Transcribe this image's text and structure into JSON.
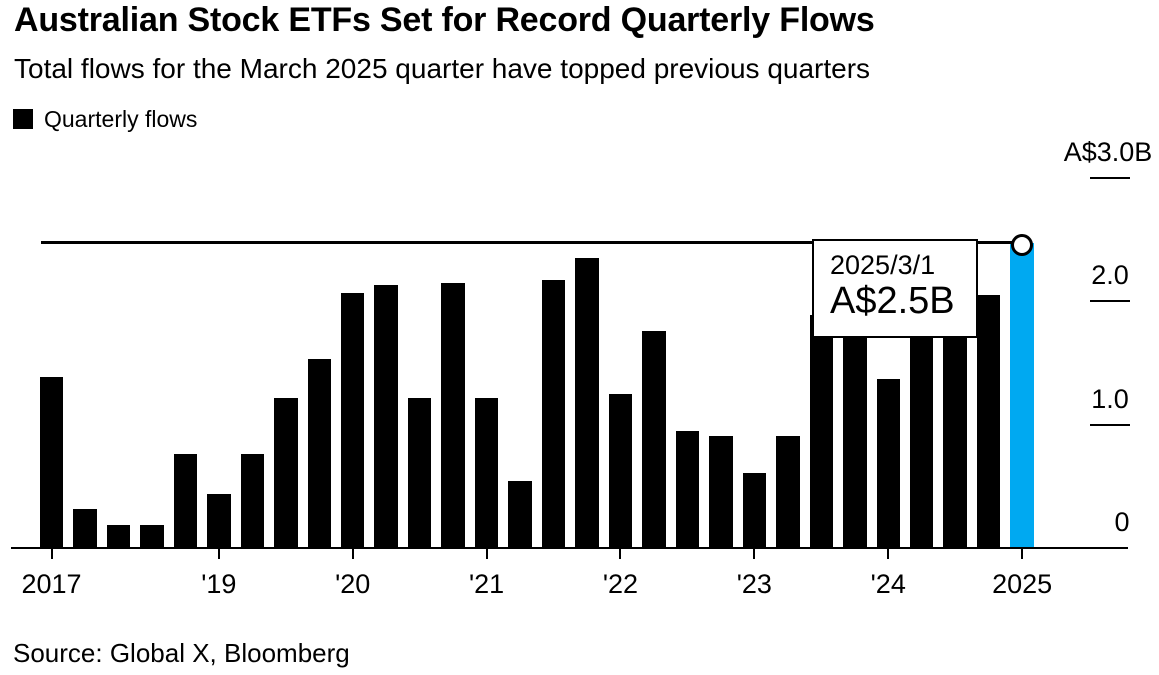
{
  "header": {
    "title": "Australian Stock ETFs Set for Record Quarterly Flows",
    "subtitle": "Total flows for the March 2025 quarter have topped previous quarters"
  },
  "legend": {
    "label": "Quarterly flows",
    "swatch_color": "#000000"
  },
  "tooltip": {
    "date": "2025/3/1",
    "value": "A$2.5B"
  },
  "source": "Source: Global X, Bloomberg",
  "colors": {
    "bar": "#000000",
    "highlight": "#00a9f1",
    "background": "#ffffff"
  },
  "chart_data": {
    "type": "bar",
    "title": "Australian Stock ETFs Set for Record Quarterly Flows",
    "subtitle": "Total flows for the March 2025 quarter have topped previous quarters",
    "unit": "billions of Australian dollars",
    "series_name": "Quarterly flows",
    "categories": [
      "2017 Q4",
      "2018 Q1",
      "2018 Q2",
      "2018 Q3",
      "2018 Q4",
      "2019 Q1",
      "2019 Q2",
      "2019 Q3",
      "2019 Q4",
      "2020 Q1",
      "2020 Q2",
      "2020 Q3",
      "2020 Q4",
      "2021 Q1",
      "2021 Q2",
      "2021 Q3",
      "2021 Q4",
      "2022 Q1",
      "2022 Q2",
      "2022 Q3",
      "2022 Q4",
      "2023 Q1",
      "2023 Q2",
      "2023 Q3",
      "2023 Q4",
      "2024 Q1",
      "2024 Q2",
      "2024 Q3",
      "2024 Q4",
      "2025 Q1"
    ],
    "values": [
      1.39,
      0.32,
      0.19,
      0.19,
      0.76,
      0.44,
      0.76,
      1.22,
      1.53,
      2.07,
      2.13,
      1.22,
      2.15,
      1.22,
      0.54,
      2.17,
      2.35,
      1.25,
      1.76,
      0.95,
      0.91,
      0.61,
      0.91,
      1.89,
      1.8,
      1.37,
      1.8,
      1.78,
      2.05,
      2.47
    ],
    "values_hidden_by_tooltip_indices": [
      24,
      26,
      27
    ],
    "hidden_values_are_estimates": true,
    "highlight": {
      "index": 29,
      "category": "2025 Q1",
      "color": "#00a9f1",
      "value_label": "A$2.5B",
      "marker": "open-circle"
    },
    "record_line_value": 2.48,
    "x_ticks": [
      {
        "index": 0,
        "label": "2017"
      },
      {
        "index": 5,
        "label": "'19"
      },
      {
        "index": 9,
        "label": "'20"
      },
      {
        "index": 13,
        "label": "'21"
      },
      {
        "index": 17,
        "label": "'22"
      },
      {
        "index": 21,
        "label": "'23"
      },
      {
        "index": 25,
        "label": "'24"
      },
      {
        "index": 29,
        "label": "2025"
      }
    ],
    "y_ticks": [
      {
        "value": 3.0,
        "label": "A$3.0B"
      },
      {
        "value": 2.0,
        "label": "2.0"
      },
      {
        "value": 1.0,
        "label": "1.0"
      },
      {
        "value": 0,
        "label": "0"
      }
    ],
    "ylim": [
      0,
      3.0
    ],
    "grid": false,
    "legend_position": "top-left",
    "y_axis_side": "right"
  }
}
